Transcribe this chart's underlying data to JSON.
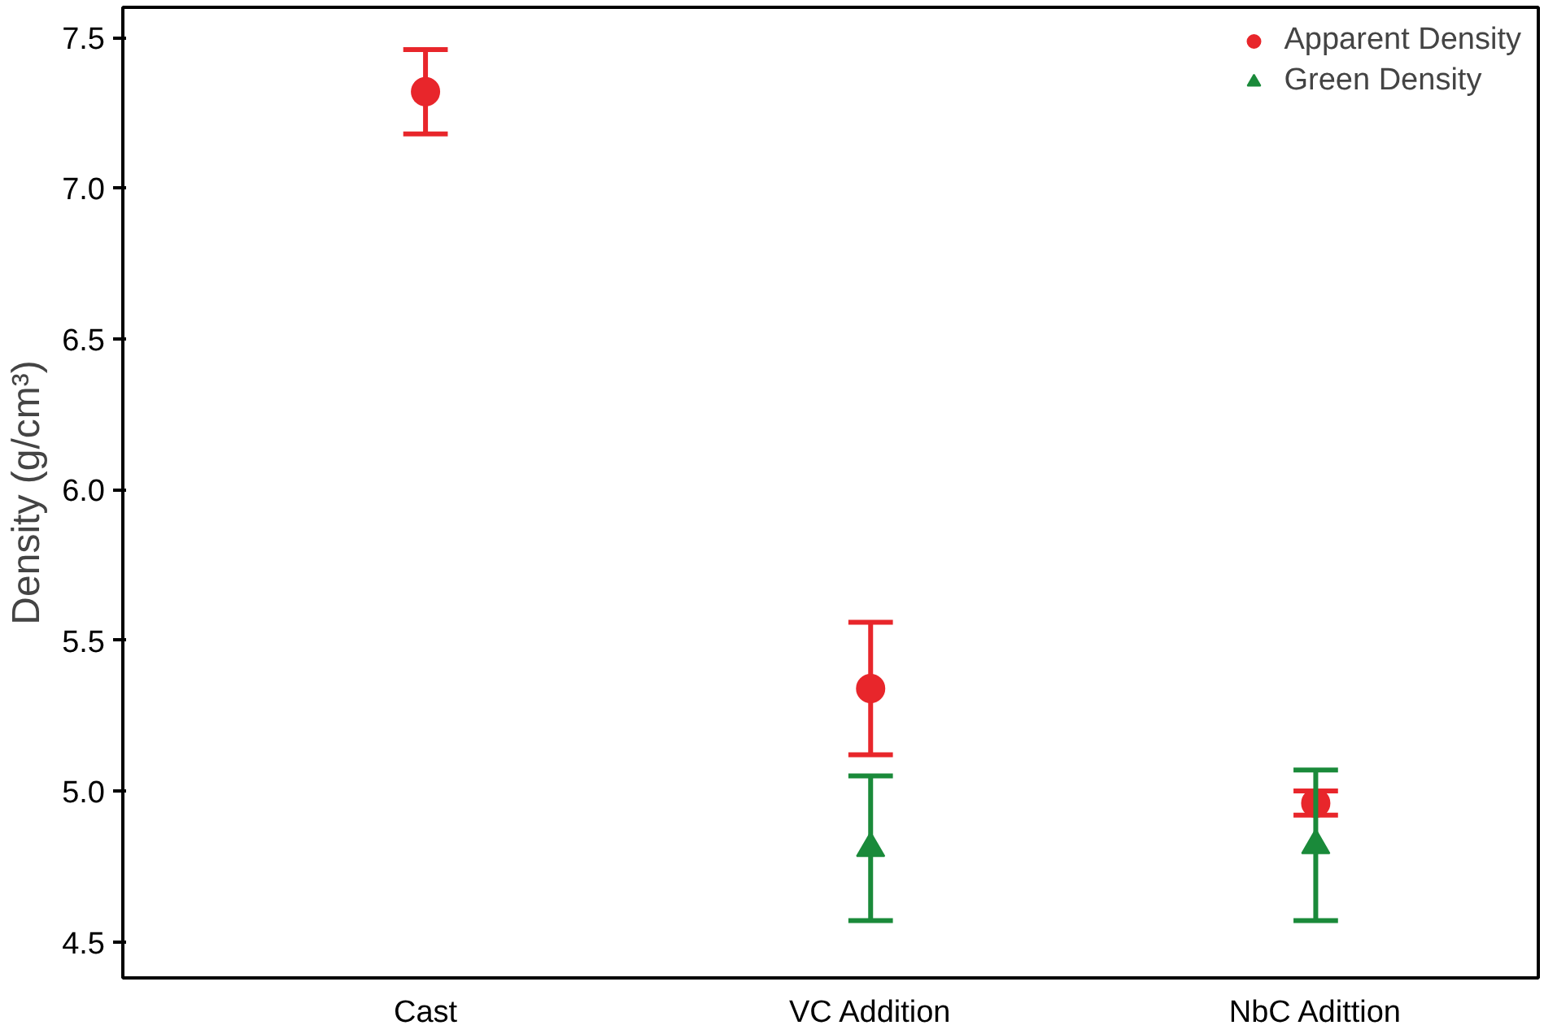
{
  "chart_data": {
    "type": "scatter",
    "ylabel": "Density (g/cm³)",
    "categories": [
      "Cast",
      "VC Addition",
      "NbC Adittion"
    ],
    "ylim": [
      4.38,
      7.6
    ],
    "yticks": [
      4.5,
      {
        "value": 5,
        "label": "5.0"
      },
      5.5,
      {
        "value": 6,
        "label": "6.0"
      },
      6.5,
      {
        "value": 7,
        "label": "7.0"
      },
      7.5
    ],
    "grid": false,
    "legend": "top right",
    "series": [
      {
        "name": "Apparent Density",
        "color": "#e8262b",
        "marker": "circle",
        "values": [
          7.32,
          5.34,
          4.96
        ],
        "errors": [
          0.14,
          0.22,
          0.04
        ]
      },
      {
        "name": "Green Density",
        "color": "#1a8a3a",
        "marker": "triangle",
        "values": [
          null,
          4.81,
          4.82
        ],
        "errors": [
          null,
          0.24,
          0.25
        ]
      }
    ]
  }
}
